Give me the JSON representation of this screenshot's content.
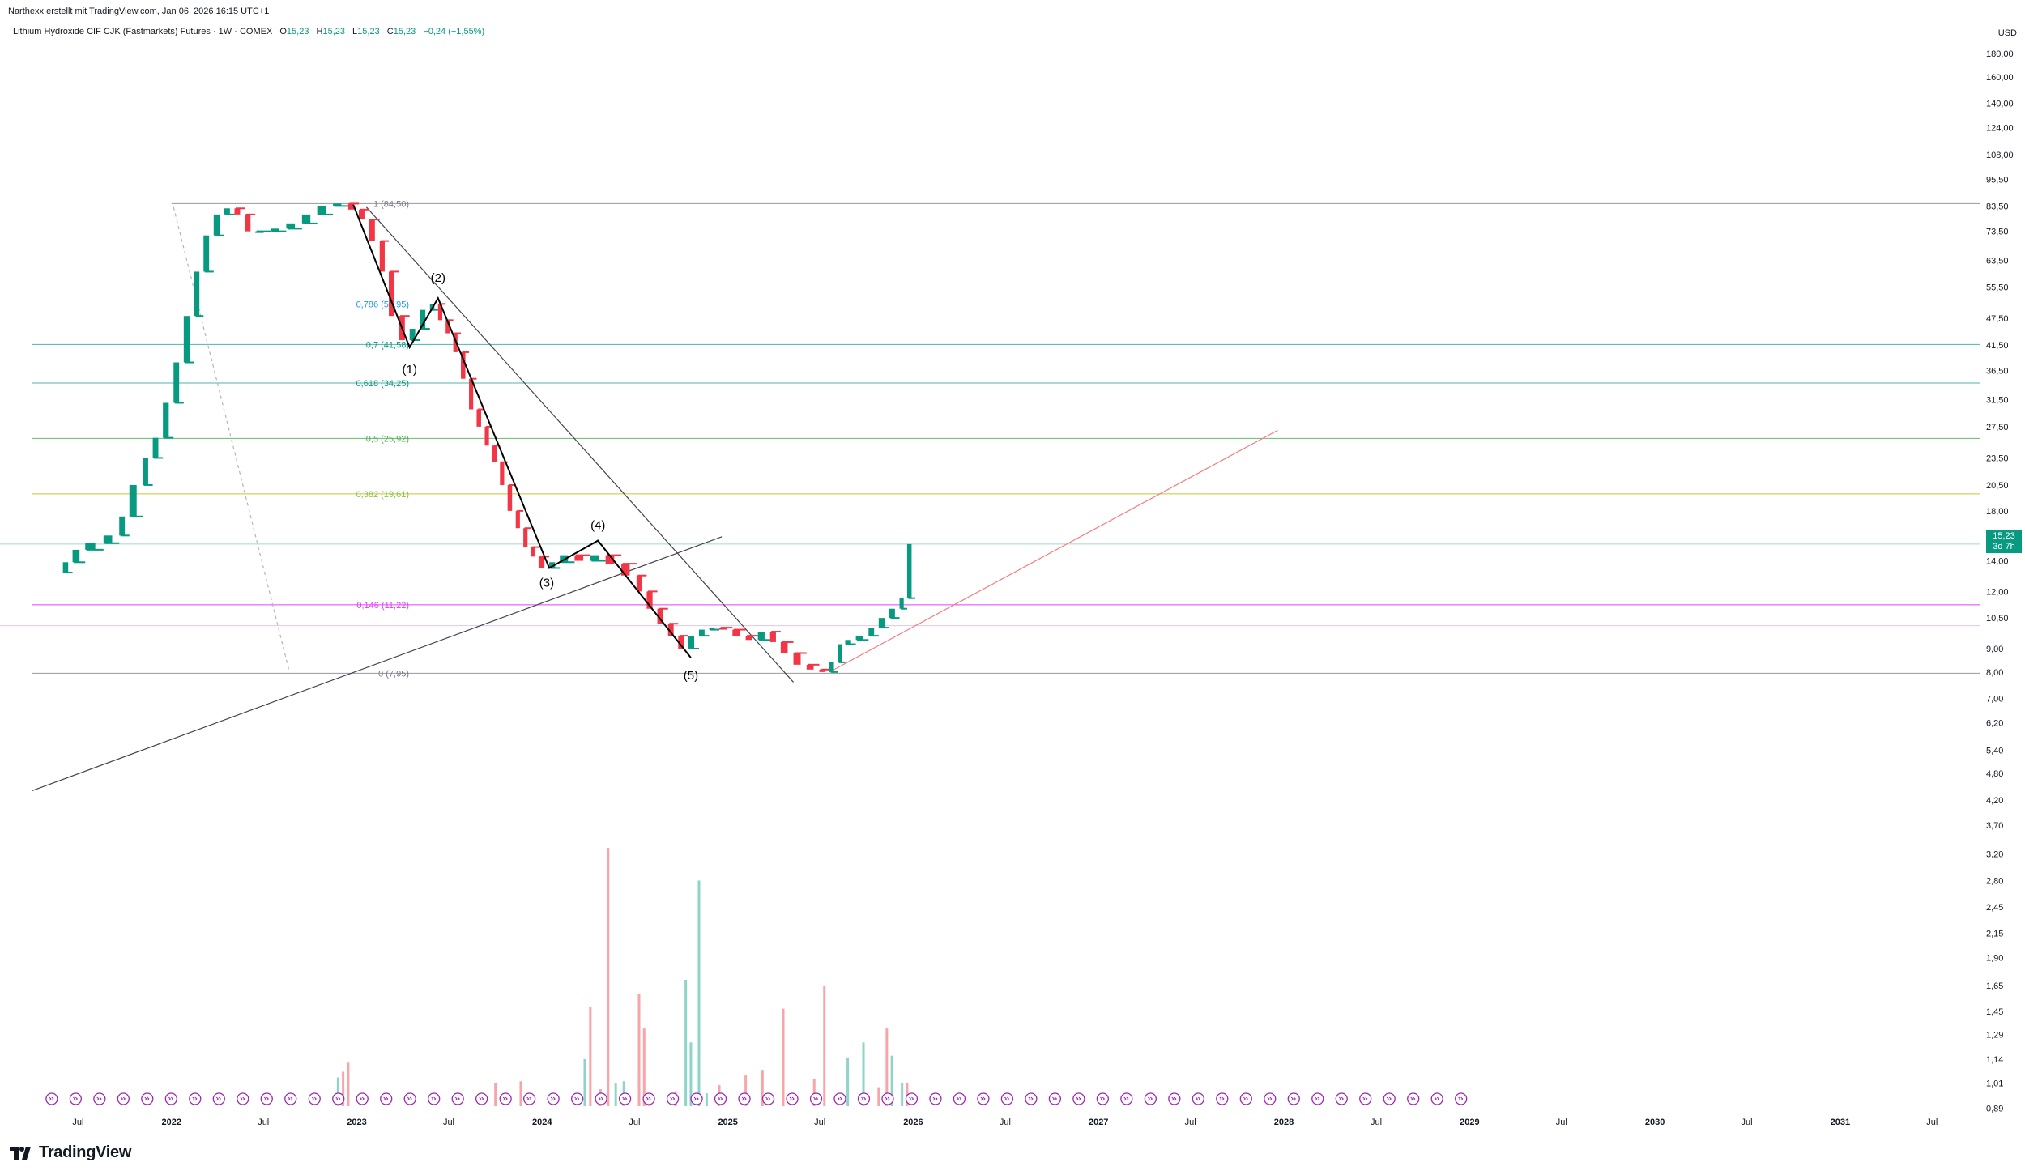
{
  "header": {
    "attribution": "Narthexx erstellt mit TradingView.com, Jan 06, 2026 16:15 UTC+1"
  },
  "legend": {
    "symbol": "Lithium Hydroxide CIF CJK (Fastmarkets) Futures · 1W · COMEX",
    "open_label": "O",
    "open": "15,23",
    "high_label": "H",
    "high": "15,23",
    "low_label": "L",
    "low": "15,23",
    "close_label": "C",
    "close": "15,23",
    "change": "−0,24 (−1,55%)"
  },
  "currency": "USD",
  "price_tag": {
    "price": "15,23",
    "countdown": "3d 7h"
  },
  "brand": {
    "name": "TradingView"
  },
  "colors": {
    "up": "#089981",
    "down": "#f23645",
    "up_volume": "#8ed4c7",
    "down_volume": "#f7a5a8"
  },
  "chart_data": {
    "type": "candlestick",
    "y_scale": "log",
    "ylim": [
      0.85,
      200
    ],
    "xlim": [
      "2021-03-01",
      "2031-12-31"
    ],
    "y_ticks": [
      {
        "v": 180,
        "t": "180,00"
      },
      {
        "v": 160,
        "t": "160,00"
      },
      {
        "v": 140,
        "t": "140,00"
      },
      {
        "v": 124,
        "t": "124,00"
      },
      {
        "v": 108,
        "t": "108,00"
      },
      {
        "v": 95.5,
        "t": "95,50"
      },
      {
        "v": 83.5,
        "t": "83,50"
      },
      {
        "v": 73.5,
        "t": "73,50"
      },
      {
        "v": 63.5,
        "t": "63,50"
      },
      {
        "v": 55.5,
        "t": "55,50"
      },
      {
        "v": 47.5,
        "t": "47,50"
      },
      {
        "v": 41.5,
        "t": "41,50"
      },
      {
        "v": 36.5,
        "t": "36,50"
      },
      {
        "v": 31.5,
        "t": "31,50"
      },
      {
        "v": 27.5,
        "t": "27,50"
      },
      {
        "v": 23.5,
        "t": "23,50"
      },
      {
        "v": 20.5,
        "t": "20,50"
      },
      {
        "v": 18,
        "t": "18,00"
      },
      {
        "v": 16,
        "t": "16,00"
      },
      {
        "v": 14,
        "t": "14,00"
      },
      {
        "v": 12,
        "t": "12,00"
      },
      {
        "v": 10.5,
        "t": "10,50"
      },
      {
        "v": 9,
        "t": "9,00"
      },
      {
        "v": 8,
        "t": "8,00"
      },
      {
        "v": 7,
        "t": "7,00"
      },
      {
        "v": 6.2,
        "t": "6,20"
      },
      {
        "v": 5.4,
        "t": "5,40"
      },
      {
        "v": 4.8,
        "t": "4,80"
      },
      {
        "v": 4.2,
        "t": "4,20"
      },
      {
        "v": 3.7,
        "t": "3,70"
      },
      {
        "v": 3.2,
        "t": "3,20"
      },
      {
        "v": 2.8,
        "t": "2,80"
      },
      {
        "v": 2.45,
        "t": "2,45"
      },
      {
        "v": 2.15,
        "t": "2,15"
      },
      {
        "v": 1.9,
        "t": "1,90"
      },
      {
        "v": 1.65,
        "t": "1,65"
      },
      {
        "v": 1.45,
        "t": "1,45"
      },
      {
        "v": 1.29,
        "t": "1,29"
      },
      {
        "v": 1.14,
        "t": "1,14"
      },
      {
        "v": 1.01,
        "t": "1,01"
      },
      {
        "v": 0.89,
        "t": "0,89"
      }
    ],
    "x_ticks": [
      {
        "d": "2021-07-01",
        "t": "Jul",
        "bold": false
      },
      {
        "d": "2022-01-01",
        "t": "2022",
        "bold": true
      },
      {
        "d": "2022-07-01",
        "t": "Jul",
        "bold": false
      },
      {
        "d": "2023-01-01",
        "t": "2023",
        "bold": true
      },
      {
        "d": "2023-07-01",
        "t": "Jul",
        "bold": false
      },
      {
        "d": "2024-01-01",
        "t": "2024",
        "bold": true
      },
      {
        "d": "2024-07-01",
        "t": "Jul",
        "bold": false
      },
      {
        "d": "2025-01-01",
        "t": "2025",
        "bold": true
      },
      {
        "d": "2025-07-01",
        "t": "Jul",
        "bold": false
      },
      {
        "d": "2026-01-01",
        "t": "2026",
        "bold": true
      },
      {
        "d": "2026-07-01",
        "t": "Jul",
        "bold": false
      },
      {
        "d": "2027-01-01",
        "t": "2027",
        "bold": true
      },
      {
        "d": "2027-07-01",
        "t": "Jul",
        "bold": false
      },
      {
        "d": "2028-01-01",
        "t": "2028",
        "bold": true
      },
      {
        "d": "2028-07-01",
        "t": "Jul",
        "bold": false
      },
      {
        "d": "2029-01-01",
        "t": "2029",
        "bold": true
      },
      {
        "d": "2029-07-01",
        "t": "Jul",
        "bold": false
      },
      {
        "d": "2030-01-01",
        "t": "2030",
        "bold": true
      },
      {
        "d": "2030-07-01",
        "t": "Jul",
        "bold": false
      },
      {
        "d": "2031-01-01",
        "t": "2031",
        "bold": true
      },
      {
        "d": "2031-07-01",
        "t": "Jul",
        "bold": false
      }
    ],
    "price_path": [
      [
        "2021-06-01",
        13.2
      ],
      [
        "2021-06-20",
        13.9
      ],
      [
        "2021-07-15",
        14.8
      ],
      [
        "2021-08-20",
        15.3
      ],
      [
        "2021-09-20",
        15.9
      ],
      [
        "2021-10-10",
        17.5
      ],
      [
        "2021-11-05",
        20.5
      ],
      [
        "2021-11-25",
        23.5
      ],
      [
        "2021-12-15",
        26.0
      ],
      [
        "2022-01-05",
        31.0
      ],
      [
        "2022-01-25",
        38.0
      ],
      [
        "2022-02-15",
        48.0
      ],
      [
        "2022-03-05",
        60.0
      ],
      [
        "2022-03-25",
        72.0
      ],
      [
        "2022-04-15",
        80.0
      ],
      [
        "2022-05-05",
        82.5
      ],
      [
        "2022-05-25",
        80.0
      ],
      [
        "2022-06-15",
        73.5
      ],
      [
        "2022-07-15",
        73.5
      ],
      [
        "2022-08-15",
        74.5
      ],
      [
        "2022-09-15",
        76.5
      ],
      [
        "2022-10-15",
        80.0
      ],
      [
        "2022-11-15",
        83.5
      ],
      [
        "2022-12-15",
        84.5
      ],
      [
        "2023-01-05",
        82.0
      ],
      [
        "2023-01-25",
        78.0
      ],
      [
        "2023-02-15",
        70.0
      ],
      [
        "2023-03-05",
        60.0
      ],
      [
        "2023-03-25",
        48.0
      ],
      [
        "2023-04-15",
        42.5
      ],
      [
        "2023-05-05",
        45.0
      ],
      [
        "2023-05-25",
        49.5
      ],
      [
        "2023-06-10",
        51.0
      ],
      [
        "2023-06-25",
        47.0
      ],
      [
        "2023-07-10",
        44.0
      ],
      [
        "2023-07-25",
        40.0
      ],
      [
        "2023-08-10",
        35.0
      ],
      [
        "2023-08-25",
        30.0
      ],
      [
        "2023-09-10",
        27.5
      ],
      [
        "2023-09-25",
        25.0
      ],
      [
        "2023-10-10",
        23.0
      ],
      [
        "2023-10-25",
        20.5
      ],
      [
        "2023-11-10",
        18.0
      ],
      [
        "2023-11-25",
        16.5
      ],
      [
        "2023-12-10",
        15.0
      ],
      [
        "2023-12-25",
        14.3
      ],
      [
        "2024-01-15",
        13.5
      ],
      [
        "2024-02-05",
        13.9
      ],
      [
        "2024-03-05",
        14.4
      ],
      [
        "2024-04-05",
        14.0
      ],
      [
        "2024-05-05",
        14.4
      ],
      [
        "2024-06-05",
        13.8
      ],
      [
        "2024-07-05",
        13.0
      ],
      [
        "2024-07-25",
        12.0
      ],
      [
        "2024-08-15",
        11.0
      ],
      [
        "2024-09-05",
        10.2
      ],
      [
        "2024-09-25",
        9.6
      ],
      [
        "2024-10-15",
        9.0
      ],
      [
        "2024-11-05",
        9.6
      ],
      [
        "2024-11-25",
        9.9
      ],
      [
        "2024-12-15",
        10.0
      ],
      [
        "2025-01-10",
        9.9
      ],
      [
        "2025-02-05",
        9.6
      ],
      [
        "2025-03-01",
        9.4
      ],
      [
        "2025-03-25",
        9.8
      ],
      [
        "2025-04-15",
        9.3
      ],
      [
        "2025-05-10",
        8.8
      ],
      [
        "2025-06-05",
        8.3
      ],
      [
        "2025-06-30",
        8.1
      ],
      [
        "2025-07-20",
        8.0
      ],
      [
        "2025-08-05",
        8.4
      ],
      [
        "2025-08-20",
        9.2
      ],
      [
        "2025-09-10",
        9.4
      ],
      [
        "2025-10-05",
        9.6
      ],
      [
        "2025-10-25",
        10.0
      ],
      [
        "2025-11-15",
        10.5
      ],
      [
        "2025-12-05",
        11.0
      ],
      [
        "2025-12-20",
        11.6
      ],
      [
        "2026-01-05",
        15.23
      ]
    ],
    "fib_levels": [
      {
        "label": "1 (84,50)",
        "v": 84.5,
        "color": "#787b86",
        "line": "#9598a1",
        "x_from": "2022-01-01"
      },
      {
        "label": "0,786 (50,95)",
        "v": 50.95,
        "color": "#2196f3",
        "line": "#64b5f6",
        "x_from": "2021-04-01"
      },
      {
        "label": "0,7 (41,58)",
        "v": 41.58,
        "color": "#089981",
        "line": "#4db6ac",
        "x_from": "2021-04-01"
      },
      {
        "label": "0,618 (34,25)",
        "v": 34.25,
        "color": "#089981",
        "line": "#4db6ac",
        "x_from": "2021-04-01"
      },
      {
        "label": "0,5 (25,92)",
        "v": 25.92,
        "color": "#4caf50",
        "line": "#66bb6a",
        "x_from": "2021-04-01"
      },
      {
        "label": "0,382 (19,61)",
        "v": 19.61,
        "color": "#8bc34a",
        "line": "#c0ca33",
        "x_from": "2021-04-01"
      },
      {
        "label": "0,146 (11,22)",
        "v": 11.22,
        "color": "#e040fb",
        "line": "#e040fb",
        "x_from": "2021-04-01"
      },
      {
        "label": "0 (7,95)",
        "v": 7.95,
        "color": "#787b86",
        "line": "#9598a1",
        "x_from": "2021-04-01"
      }
    ],
    "current_price_line": 15.23,
    "wave_labels": [
      {
        "t": "(1)",
        "d": "2023-04-15",
        "v": 36.0
      },
      {
        "t": "(2)",
        "d": "2023-06-10",
        "v": 57.0
      },
      {
        "t": "(3)",
        "d": "2024-01-10",
        "v": 12.3
      },
      {
        "t": "(4)",
        "d": "2024-04-20",
        "v": 16.4
      },
      {
        "t": "(5)",
        "d": "2024-10-20",
        "v": 7.7
      }
    ],
    "wave_path": [
      [
        "2022-12-25",
        84.0
      ],
      [
        "2023-04-15",
        41.0
      ],
      [
        "2023-06-10",
        52.5
      ],
      [
        "2024-01-15",
        13.5
      ],
      [
        "2024-04-20",
        15.5
      ],
      [
        "2024-10-20",
        8.6
      ]
    ],
    "trendlines": [
      {
        "from": [
          "2021-04-01",
          4.4
        ],
        "to": [
          "2024-12-20",
          15.8
        ],
        "color": "#434651",
        "dash": false
      },
      {
        "from": [
          "2023-01-20",
          83.0
        ],
        "to": [
          "2025-05-10",
          7.6
        ],
        "color": "#434651",
        "dash": false
      },
      {
        "from": [
          "2022-01-05",
          83.0
        ],
        "to": [
          "2022-08-20",
          8.1
        ],
        "color": "#b2b5be",
        "dash": true
      },
      {
        "from": [
          "2025-07-20",
          8.0
        ],
        "to": [
          "2027-12-20",
          27.0
        ],
        "color": "#f77c80",
        "dash": false
      }
    ],
    "volume_bars": [
      {
        "d": "2022-11-25",
        "v": 1.04,
        "up": true
      },
      {
        "d": "2022-12-05",
        "v": 1.07,
        "up": false
      },
      {
        "d": "2022-12-15",
        "v": 1.12,
        "up": false
      },
      {
        "d": "2023-10-01",
        "v": 1.01,
        "up": false
      },
      {
        "d": "2023-11-20",
        "v": 1.02,
        "up": false
      },
      {
        "d": "2024-03-25",
        "v": 1.14,
        "up": true
      },
      {
        "d": "2024-04-05",
        "v": 1.48,
        "up": false
      },
      {
        "d": "2024-04-25",
        "v": 0.98,
        "up": false
      },
      {
        "d": "2024-05-10",
        "v": 3.3,
        "up": false
      },
      {
        "d": "2024-05-25",
        "v": 1.01,
        "up": true
      },
      {
        "d": "2024-06-10",
        "v": 1.02,
        "up": true
      },
      {
        "d": "2024-07-10",
        "v": 1.58,
        "up": false
      },
      {
        "d": "2024-07-20",
        "v": 1.33,
        "up": false
      },
      {
        "d": "2024-07-30",
        "v": 0.95,
        "up": false
      },
      {
        "d": "2024-09-20",
        "v": 0.97,
        "up": false
      },
      {
        "d": "2024-10-10",
        "v": 1.7,
        "up": true
      },
      {
        "d": "2024-10-20",
        "v": 1.24,
        "up": true
      },
      {
        "d": "2024-11-05",
        "v": 2.8,
        "up": true
      },
      {
        "d": "2024-11-20",
        "v": 0.96,
        "up": true
      },
      {
        "d": "2024-12-15",
        "v": 1.0,
        "up": false
      },
      {
        "d": "2025-02-05",
        "v": 1.05,
        "up": false
      },
      {
        "d": "2025-03-10",
        "v": 1.08,
        "up": false
      },
      {
        "d": "2025-04-20",
        "v": 1.47,
        "up": false
      },
      {
        "d": "2025-06-20",
        "v": 1.03,
        "up": false
      },
      {
        "d": "2025-07-10",
        "v": 1.65,
        "up": false
      },
      {
        "d": "2025-08-25",
        "v": 1.15,
        "up": true
      },
      {
        "d": "2025-09-25",
        "v": 1.24,
        "up": true
      },
      {
        "d": "2025-10-25",
        "v": 0.99,
        "up": false
      },
      {
        "d": "2025-11-10",
        "v": 1.33,
        "up": false
      },
      {
        "d": "2025-11-20",
        "v": 1.16,
        "up": true
      },
      {
        "d": "2025-12-10",
        "v": 1.01,
        "up": true
      },
      {
        "d": "2025-12-20",
        "v": 1.01,
        "up": false
      }
    ],
    "event_markers": {
      "from": "2021-05-10",
      "to": "2028-12-15",
      "count": 60,
      "color": "#9c27b0"
    }
  }
}
